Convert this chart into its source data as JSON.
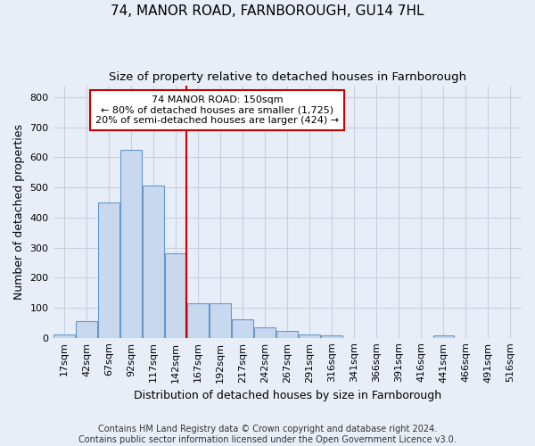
{
  "title": "74, MANOR ROAD, FARNBOROUGH, GU14 7HL",
  "subtitle": "Size of property relative to detached houses in Farnborough",
  "xlabel": "Distribution of detached houses by size in Farnborough",
  "ylabel": "Number of detached properties",
  "footer_line1": "Contains HM Land Registry data © Crown copyright and database right 2024.",
  "footer_line2": "Contains public sector information licensed under the Open Government Licence v3.0.",
  "bar_labels": [
    "17sqm",
    "42sqm",
    "67sqm",
    "92sqm",
    "117sqm",
    "142sqm",
    "167sqm",
    "192sqm",
    "217sqm",
    "242sqm",
    "267sqm",
    "291sqm",
    "316sqm",
    "341sqm",
    "366sqm",
    "391sqm",
    "416sqm",
    "441sqm",
    "466sqm",
    "491sqm",
    "516sqm"
  ],
  "bar_values": [
    12,
    55,
    450,
    625,
    505,
    280,
    115,
    115,
    62,
    35,
    22,
    10,
    8,
    0,
    0,
    0,
    0,
    8,
    0,
    0,
    0
  ],
  "bar_color": "#c8d8ee",
  "bar_edge_color": "#6699cc",
  "annotation_line1": "74 MANOR ROAD: 150sqm",
  "annotation_line2": "← 80% of detached houses are smaller (1,725)",
  "annotation_line3": "20% of semi-detached houses are larger (424) →",
  "annotation_box_color": "#cc0000",
  "ref_line_index": 5,
  "ylim": [
    0,
    840
  ],
  "yticks": [
    0,
    100,
    200,
    300,
    400,
    500,
    600,
    700,
    800
  ],
  "bg_color": "#e8eef8",
  "plot_bg_color": "#e8eef8",
  "grid_color": "#c8d0e0",
  "title_fontsize": 11,
  "subtitle_fontsize": 9.5,
  "axis_label_fontsize": 9,
  "tick_fontsize": 8,
  "footer_fontsize": 7
}
